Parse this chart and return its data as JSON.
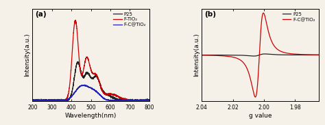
{
  "panel_a": {
    "xlabel": "Wavelength(nm)",
    "ylabel": "Intensity(a.u.)",
    "xlim": [
      200,
      800
    ],
    "xticks": [
      200,
      300,
      400,
      500,
      600,
      700,
      800
    ],
    "label": "(a)",
    "legend": [
      "P25",
      "F-TiO₂",
      "F-C@TiO₂"
    ],
    "colors": [
      "#222222",
      "#cc0000",
      "#2222bb"
    ],
    "bg_color": "#f5f0e8"
  },
  "panel_b": {
    "xlabel": "g value",
    "ylabel": "Intensity(a.u.)",
    "xlim": [
      2.04,
      1.965
    ],
    "xticks": [
      2.04,
      2.02,
      2.0,
      1.98
    ],
    "label": "(b)",
    "legend": [
      "P25",
      "F-C@TiO₂"
    ],
    "colors": [
      "#222222",
      "#cc0000"
    ],
    "bg_color": "#f5f0e8"
  },
  "fig_bg": "#f5f0e8"
}
